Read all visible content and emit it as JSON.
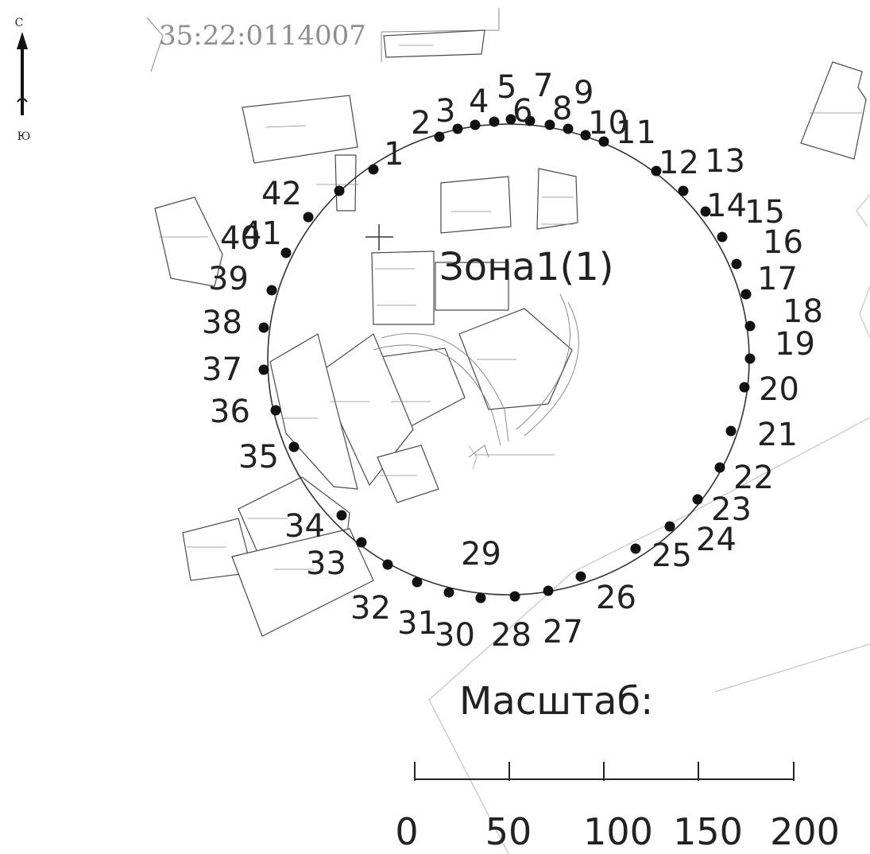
{
  "quarter_number": "35:22:0114007",
  "compass": {
    "north": "С",
    "south": "Ю"
  },
  "zone_label": "Зона1(1)",
  "boundary_points": [
    "1",
    "2",
    "3",
    "4",
    "5",
    "6",
    "7",
    "8",
    "9",
    "10",
    "11",
    "12",
    "13",
    "14",
    "15",
    "16",
    "17",
    "18",
    "19",
    "20",
    "21",
    "22",
    "23",
    "24",
    "25",
    "26",
    "27",
    "28",
    "29",
    "30",
    "31",
    "32",
    "33",
    "34",
    "35",
    "36",
    "37",
    "38",
    "39",
    "40",
    "41",
    "42"
  ],
  "scale": {
    "title": "Масштаб:",
    "ticks": [
      "0",
      "50",
      "100",
      "150",
      "200"
    ]
  },
  "icons": {
    "north_arrow": "north-arrow-icon",
    "center_marker": "crosshair-icon"
  },
  "colors": {
    "ink": "#222222",
    "parcel_stroke": "#4a4a4a",
    "faint_line": "#c4c4c4",
    "quarter_text": "#8f8f8f"
  }
}
